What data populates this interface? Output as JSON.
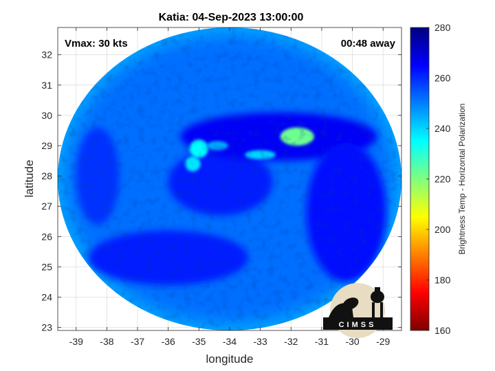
{
  "chart_data": {
    "type": "heatmap",
    "title": "Katia: 04-Sep-2023 13:00:00",
    "xlabel": "longitude",
    "ylabel": "latitude",
    "xlim": [
      -39.6,
      -28.4
    ],
    "ylim": [
      22.9,
      32.9
    ],
    "x_ticks": [
      -39,
      -38,
      -37,
      -36,
      -35,
      -34,
      -33,
      -32,
      -31,
      -30,
      -29
    ],
    "y_ticks": [
      23,
      24,
      25,
      26,
      27,
      28,
      29,
      30,
      31,
      32
    ],
    "grid": true,
    "colorbar": {
      "label": "Brightness Temp - Horizontal Polarization",
      "min": 160,
      "max": 280,
      "ticks": [
        160,
        180,
        200,
        220,
        240,
        260,
        280
      ],
      "colormap": "jet"
    },
    "annotations": {
      "top_left": "Vmax: 30 kts",
      "top_right": "00:48 away"
    },
    "swath": {
      "center_lon": -34.0,
      "center_lat": 27.9,
      "radius_lon": 5.6,
      "radius_lat": 5.0,
      "background_value": 252
    },
    "features": [
      {
        "kind": "warm_eye",
        "lon": -34.3,
        "lat": 27.8,
        "rx": 1.7,
        "ry": 1.1,
        "value": 262
      },
      {
        "kind": "cold_band",
        "lon": -32.4,
        "lat": 29.3,
        "rx": 3.2,
        "ry": 0.8,
        "value": 266
      },
      {
        "kind": "cold_band",
        "lon": -30.2,
        "lat": 26.8,
        "rx": 1.3,
        "ry": 2.3,
        "value": 264
      },
      {
        "kind": "cold_band",
        "lon": -36.0,
        "lat": 25.3,
        "rx": 2.6,
        "ry": 0.9,
        "value": 262
      },
      {
        "kind": "cold_band",
        "lon": -38.3,
        "lat": 28.0,
        "rx": 0.7,
        "ry": 1.6,
        "value": 259
      },
      {
        "kind": "convective_cell",
        "lon": -31.8,
        "lat": 29.3,
        "rx": 0.55,
        "ry": 0.3,
        "value": 222
      },
      {
        "kind": "convective_cell",
        "lon": -35.0,
        "lat": 28.9,
        "rx": 0.3,
        "ry": 0.3,
        "value": 235
      },
      {
        "kind": "convective_cell",
        "lon": -35.2,
        "lat": 28.4,
        "rx": 0.25,
        "ry": 0.25,
        "value": 238
      },
      {
        "kind": "convective_cell",
        "lon": -33.0,
        "lat": 28.7,
        "rx": 0.5,
        "ry": 0.15,
        "value": 240
      },
      {
        "kind": "convective_cell",
        "lon": -34.4,
        "lat": 29.0,
        "rx": 0.35,
        "ry": 0.15,
        "value": 245
      }
    ],
    "logo": {
      "text": "CIMSS"
    }
  }
}
